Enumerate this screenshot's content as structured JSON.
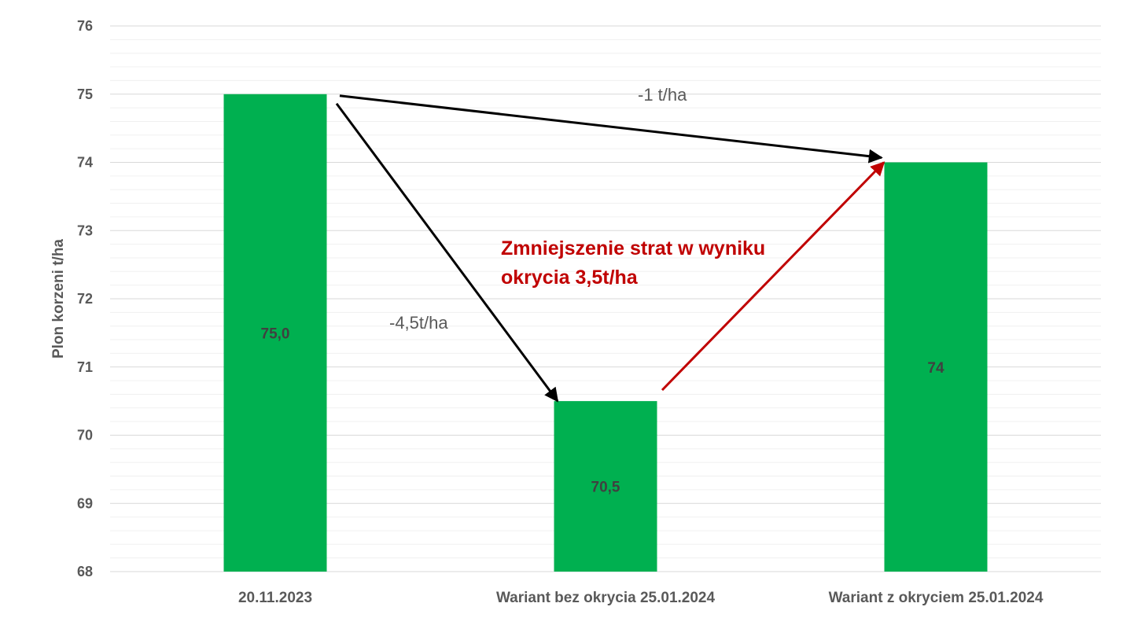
{
  "chart_data": {
    "type": "bar",
    "categories": [
      "20.11.2023",
      "Wariant bez okrycia 25.01.2024",
      "Wariant z okryciem 25.01.2024"
    ],
    "values": [
      75.0,
      70.5,
      74
    ],
    "data_labels": [
      "75,0",
      "70,5",
      "74"
    ],
    "ylabel": "Plon korzeni t/ha",
    "xlabel": "",
    "ylim": [
      68,
      76
    ],
    "y_ticks": [
      68,
      69,
      70,
      71,
      72,
      73,
      74,
      75,
      76
    ],
    "grid": true,
    "minor_gridlines": true,
    "bar_color": "#00b050",
    "annotations": {
      "drop_label": "-4,5t/ha",
      "diff_label": "-1 t/ha",
      "gain_label_line1": "Zmniejszenie strat w wyniku",
      "gain_label_line2": "okrycia 3,5t/ha"
    },
    "colors": {
      "arrow_black": "#000000",
      "arrow_red": "#c00000",
      "text_gray": "#595959"
    }
  }
}
